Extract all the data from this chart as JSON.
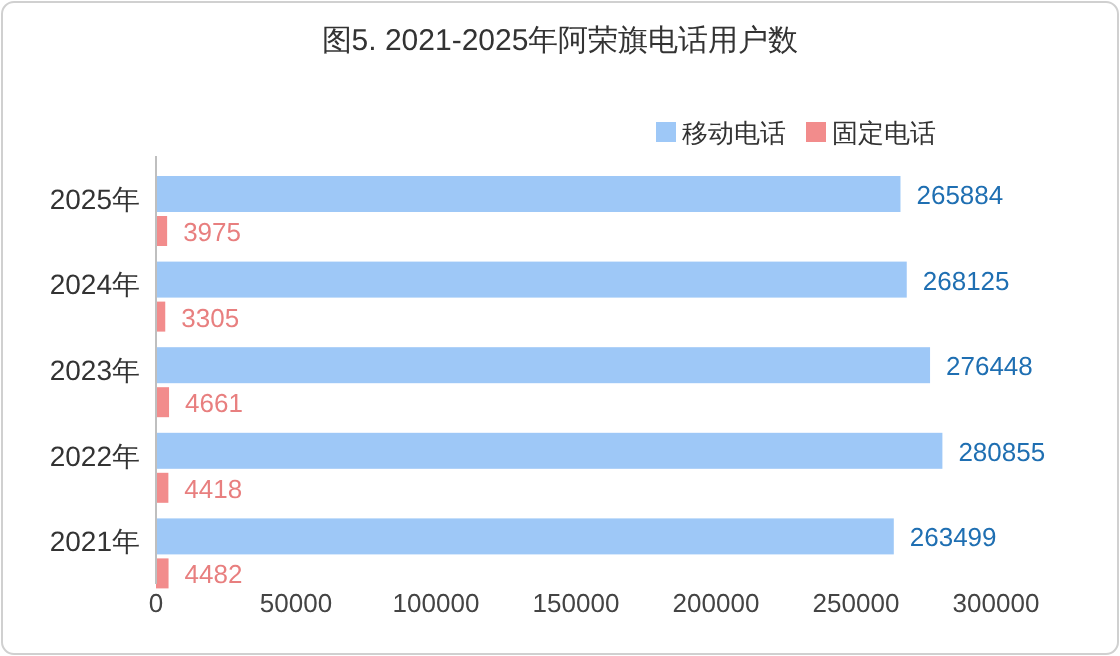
{
  "chart_data": {
    "type": "bar",
    "orientation": "horizontal",
    "title": "图5. 2021-2025年阿荣旗电话用户数",
    "categories": [
      "2025年",
      "2024年",
      "2023年",
      "2022年",
      "2021年"
    ],
    "series": [
      {
        "name": "移动电话",
        "color": "#9ec8f7",
        "values": [
          265884,
          268125,
          276448,
          280855,
          263499
        ]
      },
      {
        "name": "固定电话",
        "color": "#f28c8c",
        "values": [
          3975,
          3305,
          4661,
          4418,
          4482
        ]
      }
    ],
    "xlim": [
      0,
      300000
    ],
    "xticks": [
      0,
      50000,
      100000,
      150000,
      200000,
      250000,
      300000
    ],
    "data_labels": true,
    "legend": "top right",
    "grid": false
  }
}
